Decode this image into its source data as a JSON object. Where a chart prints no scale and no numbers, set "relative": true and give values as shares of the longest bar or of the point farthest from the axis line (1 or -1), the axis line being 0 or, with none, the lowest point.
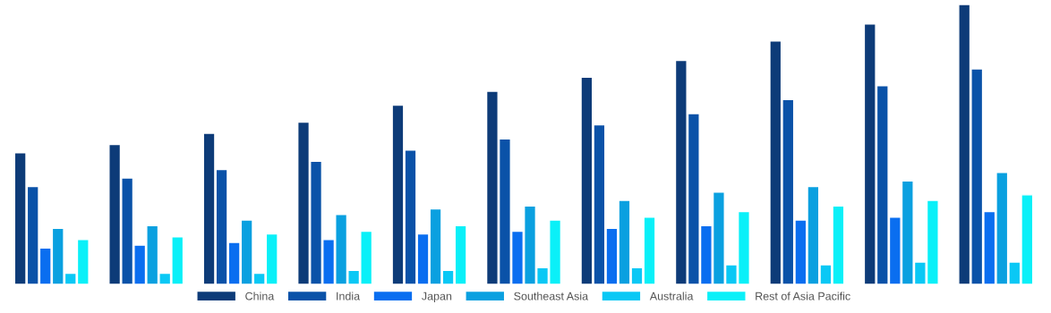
{
  "chart_data": {
    "type": "bar",
    "relative": true,
    "legend": "bottom",
    "grid": false,
    "categories": [
      null,
      null,
      null,
      null,
      null,
      null,
      null,
      null,
      null,
      null,
      null
    ],
    "series": [
      {
        "name": "China",
        "color": "#0d3b78",
        "values": [
          0.47,
          0.5,
          0.54,
          0.58,
          0.64,
          0.69,
          0.74,
          0.8,
          0.87,
          0.93,
          1.0
        ]
      },
      {
        "name": "India",
        "color": "#0a52a8",
        "values": [
          0.35,
          0.38,
          0.41,
          0.44,
          0.48,
          0.52,
          0.57,
          0.61,
          0.66,
          0.71,
          0.77
        ]
      },
      {
        "name": "Japan",
        "color": "#0a6ef0",
        "values": [
          0.13,
          0.14,
          0.15,
          0.16,
          0.18,
          0.19,
          0.2,
          0.21,
          0.23,
          0.24,
          0.26
        ]
      },
      {
        "name": "Southeast Asia",
        "color": "#0aa0e0",
        "values": [
          0.2,
          0.21,
          0.23,
          0.25,
          0.27,
          0.28,
          0.3,
          0.33,
          0.35,
          0.37,
          0.4
        ]
      },
      {
        "name": "Australia",
        "color": "#0ac8f5",
        "values": [
          0.04,
          0.04,
          0.04,
          0.05,
          0.05,
          0.06,
          0.06,
          0.07,
          0.07,
          0.08,
          0.08
        ]
      },
      {
        "name": "Rest of Asia Pacific",
        "color": "#0af0f8",
        "values": [
          0.16,
          0.17,
          0.18,
          0.19,
          0.21,
          0.23,
          0.24,
          0.26,
          0.28,
          0.3,
          0.32
        ]
      }
    ]
  }
}
